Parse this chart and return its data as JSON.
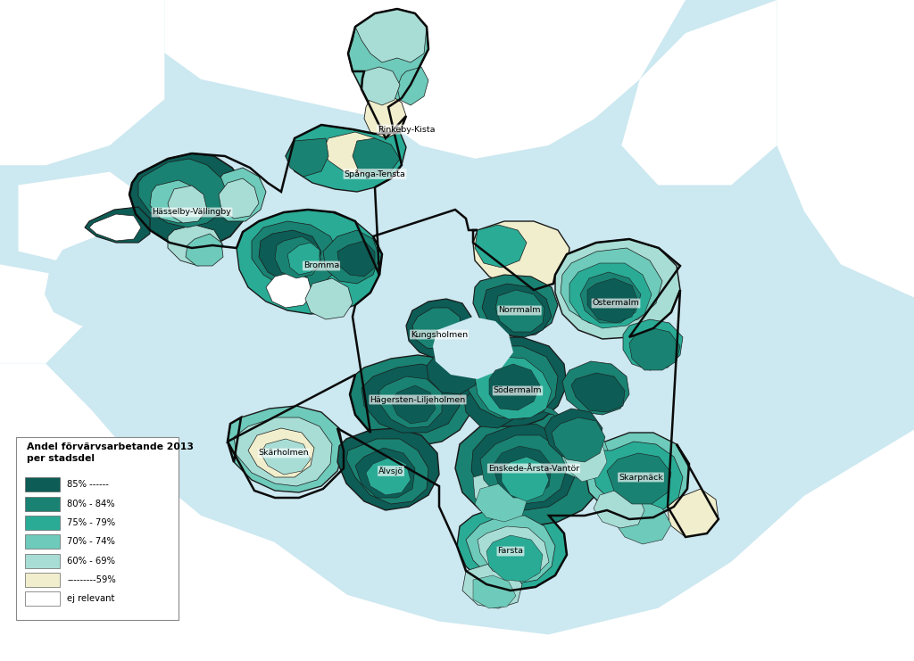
{
  "background_color": "#ffffff",
  "map_water_color": "#cce8f0",
  "map_land_color": "#e8f3f7",
  "border_color": "#1a1a1a",
  "legend_title_line1": "Andel förvärvsarbetande 2013",
  "legend_title_line2": "per stadsdel",
  "legend_items": [
    {
      "label": "85% ------",
      "color": "#0d5c55"
    },
    {
      "label": "80% - 84%",
      "color": "#1a8272"
    },
    {
      "label": "75% - 79%",
      "color": "#2aab96"
    },
    {
      "label": "70% - 74%",
      "color": "#6ecaba"
    },
    {
      "label": "60% - 69%",
      "color": "#a8ddd5"
    },
    {
      "label": "---------59%",
      "color": "#f0eecc"
    },
    {
      "label": "ej relevant",
      "color": "#ffffff"
    }
  ],
  "colors": {
    "c85": "#0d5c55",
    "c80": "#1a8272",
    "c75": "#2aab96",
    "c70": "#6ecaba",
    "c60": "#a8ddd5",
    "c59": "#f0eecc",
    "white": "#ffffff",
    "water": "#cce8f0",
    "land_outside": "#dff0f5"
  },
  "figsize": [
    10.24,
    7.41
  ],
  "dpi": 100
}
